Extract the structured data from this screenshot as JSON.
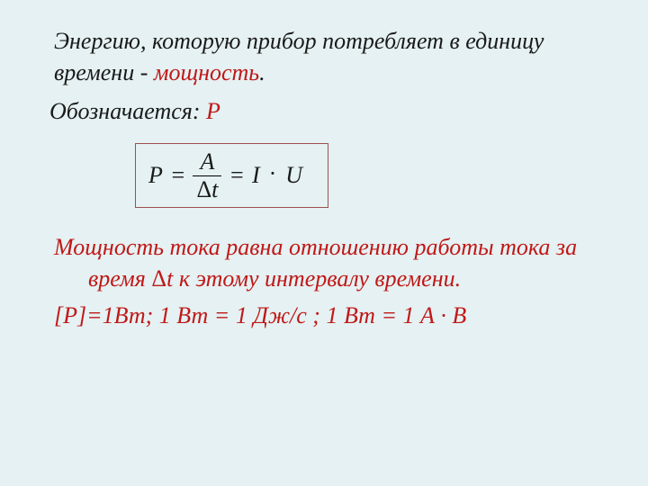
{
  "background_color": "#e5f1f2",
  "text_color": "#1a1a1a",
  "accent_color": "#c01818",
  "formula_border_color": "#a05050",
  "font_family": "Times New Roman",
  "font_size_pt": 26,
  "font_style": "italic",
  "line1_part1": "Энергию, которую прибор потребляет в единицу времени -  ",
  "line1_highlight": "мощность",
  "line1_part2": ".",
  "line2_part1": "Обозначается: ",
  "line2_highlight": "Р",
  "formula": {
    "lhs": "P",
    "eq1": "=",
    "numerator": "A",
    "denominator_delta": "Δ",
    "denominator_var": "t",
    "eq2": "=",
    "rhs_I": "I",
    "rhs_dot": "·",
    "rhs_U": "U"
  },
  "definition_part1": "Мощность  тока равна отношению работы тока за время ",
  "definition_delta": "Δ",
  "definition_var": "t",
  "definition_part2": " к этому интервалу времени.",
  "units": "[P]=1Вт;  1 Вт = 1 Дж/с ;   1 Вт = 1 А · В"
}
